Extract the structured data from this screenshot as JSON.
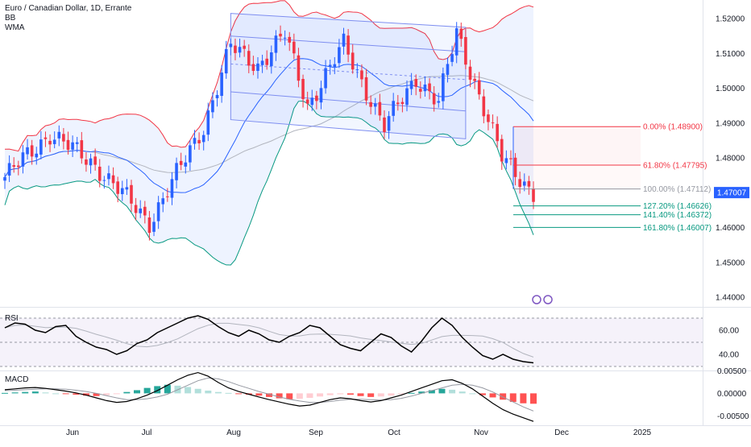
{
  "header": {
    "symbol": "Euro / Canadian Dollar, 1D, Errante",
    "indicators": [
      "BB",
      "WMA"
    ]
  },
  "colors": {
    "bull": "#2962ff",
    "bear": "#f23645",
    "bb_upper": "#f23645",
    "bb_lower": "#089981",
    "bb_basis": "#2962ff",
    "wma": "#b2b5be",
    "fib_red": "#f23645",
    "fib_grey": "#9598a1",
    "fib_green": "#089981",
    "channel": "#7e8ef0",
    "rsi_line": "#000000",
    "rsi_ma": "#b2b5be",
    "macd_line": "#000000",
    "signal_line": "#9598a1",
    "last_price_bg": "#2962ff"
  },
  "chart_data": [
    {
      "type": "candlestick",
      "title": "Euro / Canadian Dollar, 1D, Errante",
      "yticks": [
        "1.52000",
        "1.51000",
        "1.50000",
        "1.49000",
        "1.48000",
        "1.47000",
        "1.46000",
        "1.45000",
        "1.44000"
      ],
      "ylim": [
        1.4375,
        1.5235
      ],
      "xticks": [
        "Jun",
        "Jul",
        "Aug",
        "Sep",
        "Oct",
        "Nov",
        "Dec",
        "2025"
      ],
      "last_price": "1.47007",
      "key_closes": [
        {
          "date": "Jun",
          "close": 1.4745
        },
        {
          "date": "mid Jun",
          "close": 1.487
        },
        {
          "date": "late Jun",
          "close": 1.478
        },
        {
          "date": "early Jul",
          "close": 1.4615
        },
        {
          "date": "late Jul",
          "close": 1.489
        },
        {
          "date": "Aug",
          "close": 1.512
        },
        {
          "date": "mid Aug",
          "close": 1.5065
        },
        {
          "date": "late Aug",
          "close": 1.5155
        },
        {
          "date": "Sep",
          "close": 1.495
        },
        {
          "date": "mid Sep",
          "close": 1.5125
        },
        {
          "date": "Oct",
          "close": 1.489
        },
        {
          "date": "mid Oct",
          "close": 1.503
        },
        {
          "date": "late Oct",
          "close": 1.496
        },
        {
          "date": "Nov",
          "close": 1.516
        },
        {
          "date": "mid Nov",
          "close": 1.48
        },
        {
          "date": "late Nov",
          "close": 1.4701
        }
      ],
      "fibonacci": [
        {
          "label": "0.00% (1.48900)",
          "price": 1.489,
          "color": "red"
        },
        {
          "label": "61.80% (1.47795)",
          "price": 1.47795,
          "color": "red"
        },
        {
          "label": "100.00% (1.47112)",
          "price": 1.47112,
          "color": "grey"
        },
        {
          "label": "127.20% (1.46626)",
          "price": 1.46626,
          "color": "green"
        },
        {
          "label": "141.40% (1.46372)",
          "price": 1.46372,
          "color": "green"
        },
        {
          "label": "161.80% (1.46007)",
          "price": 1.46007,
          "color": "green"
        }
      ]
    },
    {
      "type": "line",
      "title": "RSI",
      "yticks": [
        "60.00",
        "40.00"
      ],
      "ylim": [
        28,
        76
      ],
      "values": [
        62,
        66,
        65,
        60,
        58,
        63,
        64,
        55,
        50,
        46,
        44,
        40,
        43,
        49,
        52,
        58,
        62,
        66,
        70,
        72,
        69,
        63,
        58,
        55,
        60,
        57,
        52,
        50,
        55,
        58,
        64,
        62,
        55,
        48,
        45,
        43,
        50,
        57,
        54,
        47,
        42,
        51,
        62,
        70,
        64,
        54,
        46,
        39,
        36,
        40,
        36,
        34,
        33
      ]
    },
    {
      "type": "bar",
      "title": "MACD",
      "yticks": [
        "0.00500",
        "0.00000",
        "-0.00500"
      ],
      "ylim": [
        -0.0067,
        0.0047
      ],
      "histogram": [
        0.0001,
        0.0002,
        0.0003,
        0.0004,
        0.0002,
        0.0,
        -0.0001,
        -0.0003,
        -0.0005,
        -0.0006,
        -0.0004,
        -0.0001,
        0.0003,
        0.0007,
        0.0012,
        0.0016,
        0.0019,
        0.0017,
        0.0014,
        0.001,
        0.0006,
        0.0003,
        0.0001,
        -0.0001,
        -0.0003,
        -0.0005,
        -0.0008,
        -0.0011,
        -0.0013,
        -0.0012,
        -0.001,
        -0.0007,
        -0.0004,
        -0.0002,
        -0.0003,
        -0.0006,
        -0.0008,
        -0.0007,
        -0.0005,
        -0.0002,
        0.0001,
        0.0004,
        0.0007,
        0.001,
        0.0008,
        0.0004,
        0.0,
        -0.0004,
        -0.0009,
        -0.0014,
        -0.0019,
        -0.0022,
        -0.0023
      ],
      "macd": [
        0.0008,
        0.001,
        0.0012,
        0.0013,
        0.0011,
        0.0008,
        0.0005,
        0.0001,
        -0.0004,
        -0.001,
        -0.0016,
        -0.002,
        -0.0018,
        -0.0012,
        -0.0004,
        0.0006,
        0.0018,
        0.003,
        0.004,
        0.0046,
        0.0038,
        0.0024,
        0.0012,
        0.0004,
        -0.0002,
        -0.0008,
        -0.0014,
        -0.0019,
        -0.0024,
        -0.0028,
        -0.0026,
        -0.002,
        -0.0014,
        -0.001,
        -0.0012,
        -0.0016,
        -0.0019,
        -0.0016,
        -0.001,
        -0.0004,
        0.0004,
        0.0012,
        0.002,
        0.0028,
        0.003,
        0.0022,
        0.001,
        -0.0006,
        -0.0022,
        -0.0036,
        -0.0046,
        -0.0054,
        -0.0062
      ],
      "signal": [
        0.0006,
        0.0007,
        0.0008,
        0.0009,
        0.001,
        0.001,
        0.0009,
        0.0007,
        0.0004,
        0.0,
        -0.0005,
        -0.001,
        -0.0014,
        -0.0014,
        -0.0012,
        -0.0008,
        -0.0002,
        0.0008,
        0.0018,
        0.0028,
        0.0034,
        0.0032,
        0.0026,
        0.0018,
        0.0011,
        0.0004,
        -0.0002,
        -0.0008,
        -0.0013,
        -0.0017,
        -0.002,
        -0.002,
        -0.0018,
        -0.0015,
        -0.0013,
        -0.0013,
        -0.0014,
        -0.0015,
        -0.0014,
        -0.0011,
        -0.0006,
        0.0,
        0.0006,
        0.0012,
        0.0018,
        0.002,
        0.0018,
        0.0012,
        0.0003,
        -0.0008,
        -0.0019,
        -0.003,
        -0.0039
      ]
    }
  ]
}
